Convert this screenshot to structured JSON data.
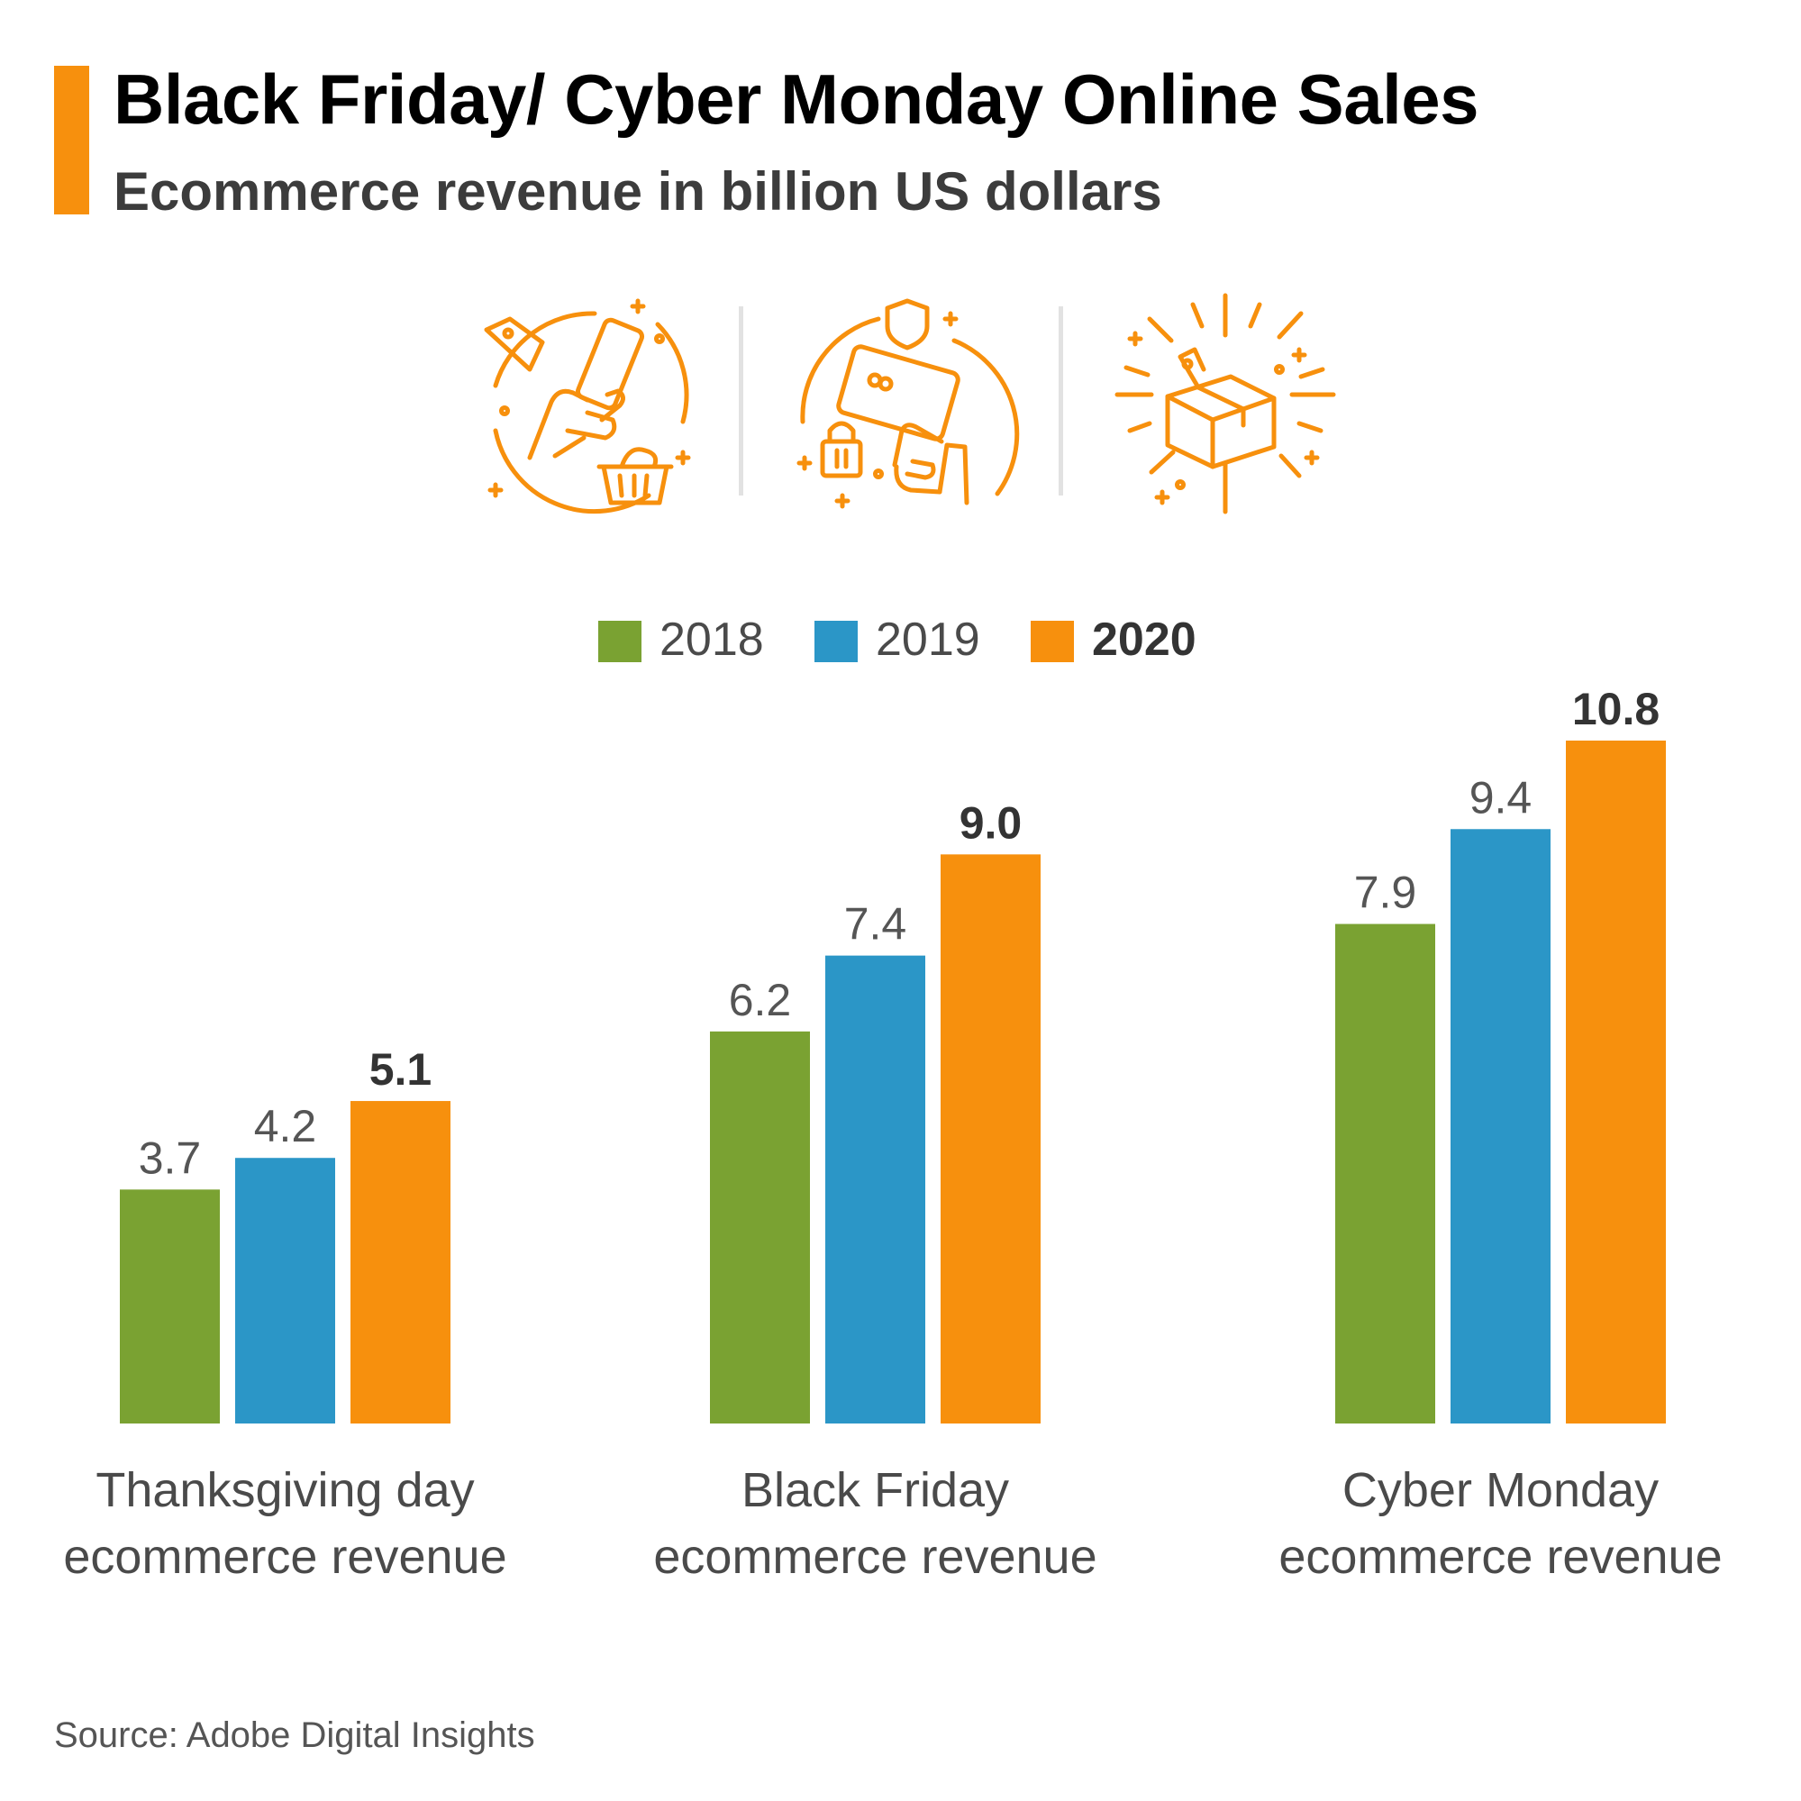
{
  "header": {
    "title": "Black Friday/ Cyber Monday Online Sales",
    "subtitle": "Ecommerce revenue in billion US dollars"
  },
  "icons": [
    "phone-shopping-icon",
    "secure-card-payment-icon",
    "package-delivery-icon"
  ],
  "colors": {
    "accent": "#f7900d",
    "series_2018": "#7aa232",
    "series_2019": "#2b96c7",
    "series_2020": "#f7900d",
    "icon": "#f7900d",
    "divider": "#e2e2e2"
  },
  "legend": [
    {
      "label": "2018",
      "color": "#7aa232",
      "emphasis": false
    },
    {
      "label": "2019",
      "color": "#2b96c7",
      "emphasis": false
    },
    {
      "label": "2020",
      "color": "#f7900d",
      "emphasis": true
    }
  ],
  "chart_data": {
    "type": "bar",
    "title": "Black Friday/ Cyber Monday Online Sales",
    "subtitle": "Ecommerce revenue in billion US dollars",
    "categories": [
      [
        "Thanksgiving day",
        "ecommerce revenue"
      ],
      [
        "Black Friday",
        "ecommerce revenue"
      ],
      [
        "Cyber Monday",
        "ecommerce revenue"
      ]
    ],
    "series": [
      {
        "name": "2018",
        "values": [
          3.7,
          6.2,
          7.9
        ],
        "labels": [
          "3.7",
          "6.2",
          "7.9"
        ],
        "color": "#7aa232",
        "bold_labels": false
      },
      {
        "name": "2019",
        "values": [
          4.2,
          7.4,
          9.4
        ],
        "labels": [
          "4.2",
          "7.4",
          "9.4"
        ],
        "color": "#2b96c7",
        "bold_labels": false
      },
      {
        "name": "2020",
        "values": [
          5.1,
          9.0,
          10.8
        ],
        "labels": [
          "5.1",
          "9.0",
          "10.8"
        ],
        "color": "#f7900d",
        "bold_labels": true
      }
    ],
    "ylim": [
      0,
      10.8
    ],
    "grid": false,
    "legend_position": "top-center",
    "xlabel": "",
    "ylabel": ""
  },
  "source": "Source: Adobe Digital Insights"
}
